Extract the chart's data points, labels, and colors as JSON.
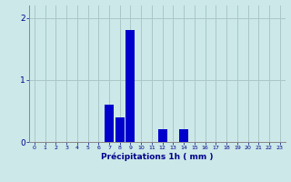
{
  "hours": [
    0,
    1,
    2,
    3,
    4,
    5,
    6,
    7,
    8,
    9,
    10,
    11,
    12,
    13,
    14,
    15,
    16,
    17,
    18,
    19,
    20,
    21,
    22,
    23
  ],
  "values": [
    0,
    0,
    0,
    0,
    0,
    0,
    0,
    0.6,
    0.4,
    1.8,
    0,
    0,
    0.2,
    0,
    0.2,
    0,
    0,
    0,
    0,
    0,
    0,
    0,
    0,
    0
  ],
  "bar_color": "#0000cc",
  "background_color": "#cce8e8",
  "grid_color": "#aac8c8",
  "xlabel": "Précipitations 1h ( mm )",
  "xlabel_color": "#00008b",
  "tick_color": "#00008b",
  "ylim": [
    0,
    2.2
  ],
  "yticks": [
    0,
    1,
    2
  ],
  "xlim": [
    -0.5,
    23.5
  ]
}
